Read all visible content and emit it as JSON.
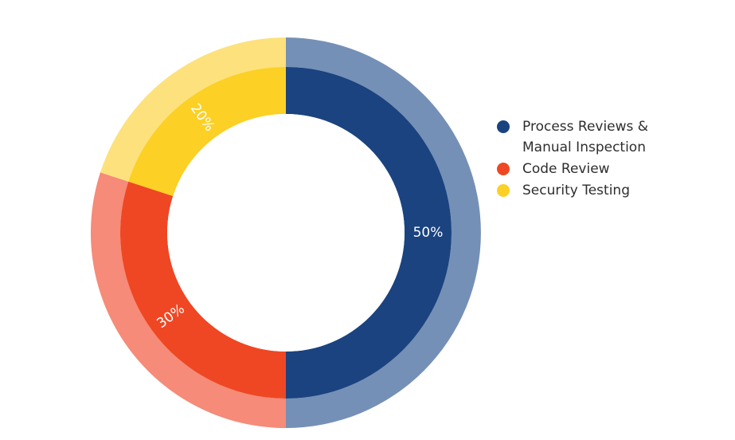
{
  "chart_data": {
    "type": "pie",
    "style": "double-ring donut",
    "title": "",
    "slices": [
      {
        "label": "Process Reviews & Manual Inspection",
        "value": 50,
        "display": "50%",
        "color": "#1a4380",
        "outer_color": "#7590b6"
      },
      {
        "label": "Code Review",
        "value": 30,
        "display": "30%",
        "color": "#ef4723",
        "outer_color": "#f58b78"
      },
      {
        "label": "Security Testing",
        "value": 20,
        "display": "20%",
        "color": "#fcd024",
        "outer_color": "#fde17c"
      }
    ],
    "legend_position": "right"
  }
}
